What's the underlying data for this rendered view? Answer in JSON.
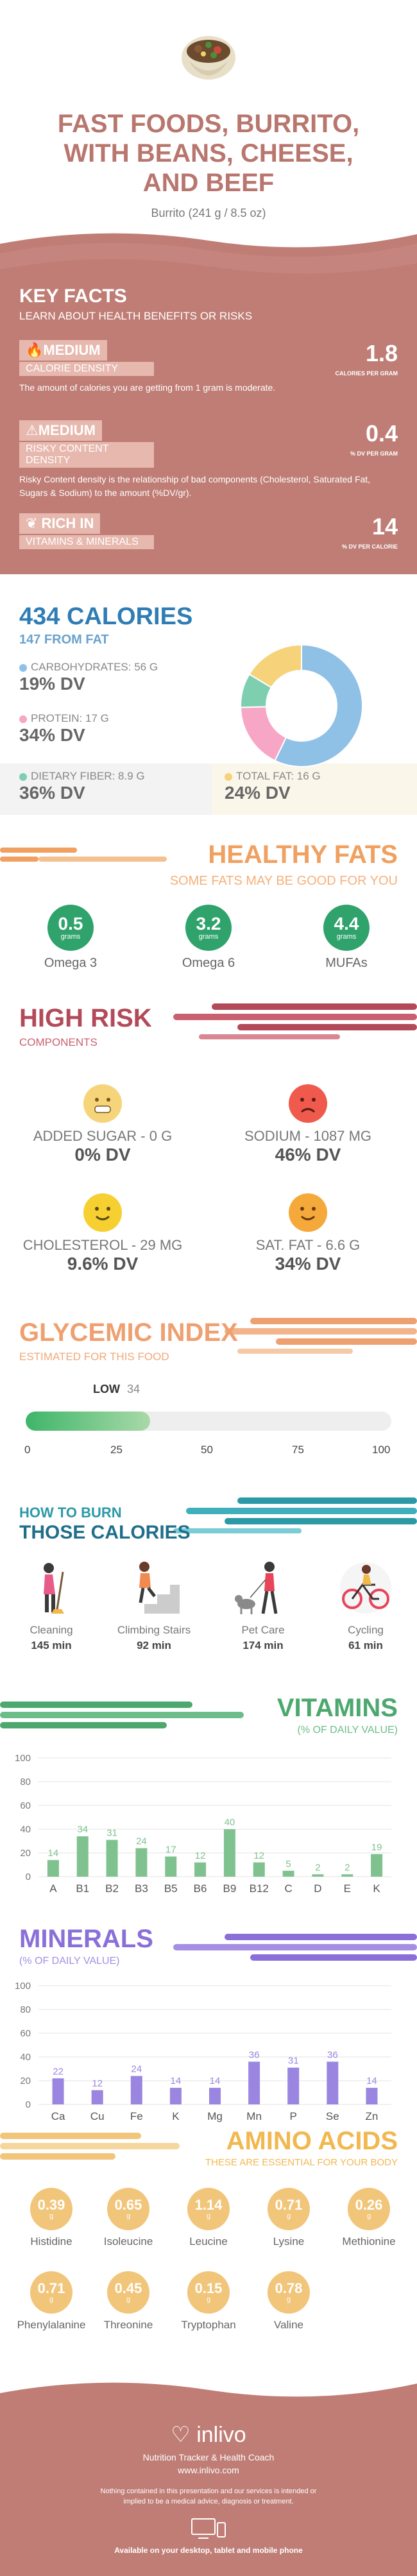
{
  "header": {
    "title_lines": [
      "FAST FOODS, BURRITO,",
      "WITH BEANS, CHEESE,",
      "AND BEEF"
    ],
    "serving": "Burrito (241 g / 8.5 oz)"
  },
  "key_facts": {
    "title": "KEY FACTS",
    "subtitle": "LEARN ABOUT HEALTH BENEFITS OR RISKS",
    "items": [
      {
        "level": "MEDIUM",
        "label": "CALORIE DENSITY",
        "value": "1.8",
        "unit": "CALORIES PER GRAM",
        "desc": "The amount of calories you are getting from 1 gram is moderate."
      },
      {
        "level": "MEDIUM",
        "label": "RISKY CONTENT DENSITY",
        "value": "0.4",
        "unit": "% DV PER GRAM",
        "desc": "Risky Content density is the relationship of bad components (Cholesterol, Saturated Fat, Sugars & Sodium) to the amount (%DV/gr)."
      },
      {
        "level": "RICH IN",
        "label": "VITAMINS & MINERALS",
        "value": "14",
        "unit": "% DV PER CALORIE",
        "desc": ""
      }
    ]
  },
  "calories": {
    "title": "434 CALORIES",
    "from_fat": "147 FROM FAT",
    "macros": [
      {
        "label": "CARBOHYDRATES: 56 g",
        "dv": "19% DV",
        "color": "#8fc0e6"
      },
      {
        "label": "PROTEIN: 17 g",
        "dv": "34% DV",
        "color": "#f7a6c6"
      },
      {
        "label": "DIETARY FIBER: 8.9 g",
        "dv": "36% DV",
        "color": "#7dcfb0"
      },
      {
        "label": "TOTAL FAT: 16 g",
        "dv": "24% DV",
        "color": "#f6d27a"
      }
    ],
    "donut": [
      {
        "name": "carbohydrates",
        "value": 56,
        "color": "#8fc0e6"
      },
      {
        "name": "protein",
        "value": 17,
        "color": "#f7a6c6"
      },
      {
        "name": "dietary-fiber",
        "value": 8.9,
        "color": "#7dcfb0"
      },
      {
        "name": "total-fat",
        "value": 16,
        "color": "#f6d27a"
      }
    ]
  },
  "fats": {
    "title": "HEALTHY FATS",
    "subtitle": "SOME FATS MAY BE GOOD FOR YOU",
    "unit": "grams",
    "items": [
      {
        "value": "0.5",
        "name": "Omega 3"
      },
      {
        "value": "3.2",
        "name": "Omega 6"
      },
      {
        "value": "4.4",
        "name": "MUFAs"
      }
    ]
  },
  "risk": {
    "title": "HIGH RISK",
    "subtitle": "COMPONENTS",
    "items": [
      {
        "label": "ADDED SUGAR - 0 g",
        "dv": "0% DV",
        "color": "#f6d47a",
        "face": "grin"
      },
      {
        "label": "SODIUM - 1087 mg",
        "dv": "46% DV",
        "color": "#ef5a4c",
        "face": "sad"
      },
      {
        "label": "CHOLESTEROL - 29 mg",
        "dv": "9.6% DV",
        "color": "#f6d030",
        "face": "smile"
      },
      {
        "label": "SAT. FAT - 6.6 g",
        "dv": "34% DV",
        "color": "#f5a93a",
        "face": "smile"
      }
    ]
  },
  "glycemic": {
    "title": "GLYCEMIC INDEX",
    "subtitle": "ESTIMATED FOR THIS FOOD",
    "level": "LOW",
    "value": "34",
    "fill_percent": 34,
    "ticks": [
      "0",
      "25",
      "50",
      "75",
      "100"
    ]
  },
  "burn": {
    "title_top": "HOW TO BURN",
    "title_bottom": "THOSE CALORIES",
    "items": [
      {
        "label": "Cleaning",
        "value": "145 min",
        "icon": "cleaning-icon"
      },
      {
        "label": "Climbing Stairs",
        "value": "92 min",
        "icon": "stairs-icon"
      },
      {
        "label": "Pet Care",
        "value": "174 min",
        "icon": "pet-care-icon"
      },
      {
        "label": "Cycling",
        "value": "61 min",
        "icon": "cycling-icon"
      }
    ]
  },
  "vitamins": {
    "title": "VITAMINS",
    "subtitle": "(% OF DAILY VALUE)"
  },
  "minerals": {
    "title": "MINERALS",
    "subtitle": "(% OF DAILY VALUE)"
  },
  "chart_data": [
    {
      "type": "bar",
      "title": "VITAMINS",
      "subtitle": "(% OF DAILY VALUE)",
      "categories": [
        "A",
        "B1",
        "B2",
        "B3",
        "B5",
        "B6",
        "B9",
        "B12",
        "C",
        "D",
        "E",
        "K"
      ],
      "values": [
        14,
        34,
        31,
        24,
        17,
        12,
        40,
        12,
        5,
        2,
        2,
        19
      ],
      "yticks": [
        0,
        20,
        40,
        60,
        80,
        100
      ],
      "ylim": [
        0,
        100
      ],
      "color": "#7fc28f",
      "grid": true
    },
    {
      "type": "bar",
      "title": "MINERALS",
      "subtitle": "(% OF DAILY VALUE)",
      "categories": [
        "Ca",
        "Cu",
        "Fe",
        "K",
        "Mg",
        "Mn",
        "P",
        "Se",
        "Zn"
      ],
      "values": [
        22,
        12,
        24,
        14,
        14,
        36,
        31,
        36,
        14
      ],
      "yticks": [
        0,
        20,
        40,
        60,
        80,
        100
      ],
      "ylim": [
        0,
        100
      ],
      "color": "#9a86e0",
      "grid": true
    }
  ],
  "amino": {
    "title": "AMINO ACIDS",
    "subtitle": "THESE ARE ESSENTIAL FOR YOUR BODY",
    "unit": "g",
    "items": [
      {
        "value": "0.39",
        "name": "Histidine"
      },
      {
        "value": "0.65",
        "name": "Isoleucine"
      },
      {
        "value": "1.14",
        "name": "Leucine"
      },
      {
        "value": "0.71",
        "name": "Lysine"
      },
      {
        "value": "0.26",
        "name": "Methionine"
      },
      {
        "value": "0.71",
        "name": "Phenylalanine"
      },
      {
        "value": "0.45",
        "name": "Threonine"
      },
      {
        "value": "0.15",
        "name": "Tryptophan"
      },
      {
        "value": "0.78",
        "name": "Valine"
      }
    ]
  },
  "footer": {
    "brand": "inlivo",
    "tagline": "Nutrition Tracker & Health Coach",
    "url": "www.inlivo.com",
    "disclaimer": "Nothing contained in this presentation and our services is intended or implied to be a medical advice, diagnosis or treatment.",
    "available": "Available on your desktop, tablet and mobile phone"
  },
  "colors": {
    "brand_rose": "#b8766e",
    "fats_orange": "#f0a060",
    "fats_green": "#2fa36b",
    "risk_red": "#b34a59",
    "glycemic_orange": "#eea070",
    "burn_teal": "#2b9aa6",
    "vitamins_green": "#4da86f",
    "minerals_purple": "#8a6fd9",
    "amino_yellow": "#f1c57a"
  }
}
